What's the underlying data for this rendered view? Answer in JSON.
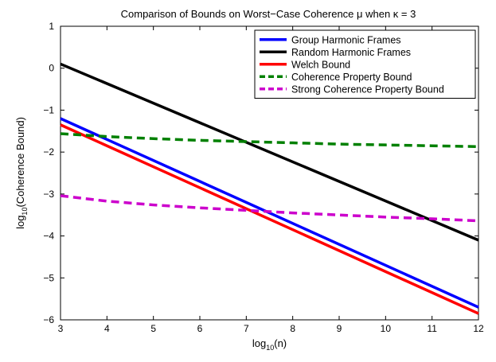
{
  "chart_data": {
    "type": "line",
    "title": "Comparison of Bounds on Worst−Case Coherence μ when κ = 3",
    "xlabel": {
      "prefix": "log",
      "sub": "10",
      "suffix": "(n)"
    },
    "ylabel": {
      "prefix": "log",
      "sub": "10",
      "suffix": "(Coherence Bound)"
    },
    "xlim": [
      3,
      12
    ],
    "ylim": [
      -6,
      1
    ],
    "xticks": [
      3,
      4,
      5,
      6,
      7,
      8,
      9,
      10,
      11,
      12
    ],
    "xtick_labels": [
      "3",
      "4",
      "5",
      "6",
      "7",
      "8",
      "9",
      "10",
      "11",
      "12"
    ],
    "yticks": [
      -6,
      -5,
      -4,
      -3,
      -2,
      -1,
      0,
      1
    ],
    "ytick_labels": [
      "−6",
      "−5",
      "−4",
      "−3",
      "−2",
      "−1",
      "0",
      "1"
    ],
    "grid": false,
    "legend_position": "top-right",
    "series": [
      {
        "name": "Group Harmonic Frames",
        "color": "#0000ff",
        "style": "solid",
        "x": [
          3,
          12
        ],
        "y": [
          -1.2,
          -5.7
        ]
      },
      {
        "name": "Random Harmonic Frames",
        "color": "#000000",
        "style": "solid",
        "x": [
          3,
          12
        ],
        "y": [
          0.1,
          -4.1
        ]
      },
      {
        "name": "Welch Bound",
        "color": "#ff0000",
        "style": "solid",
        "x": [
          3,
          12
        ],
        "y": [
          -1.35,
          -5.85
        ]
      },
      {
        "name": "Coherence Property Bound",
        "color": "#008000",
        "style": "dashed",
        "x": [
          3,
          4,
          5,
          6,
          7,
          8,
          9,
          10,
          11,
          12
        ],
        "y": [
          -1.56,
          -1.63,
          -1.68,
          -1.72,
          -1.75,
          -1.78,
          -1.81,
          -1.83,
          -1.85,
          -1.87
        ]
      },
      {
        "name": "Strong Coherence Property Bound",
        "color": "#cc00cc",
        "style": "dashed",
        "x": [
          3,
          4,
          5,
          6,
          7,
          8,
          9,
          10,
          11,
          12
        ],
        "y": [
          -3.04,
          -3.17,
          -3.26,
          -3.33,
          -3.39,
          -3.45,
          -3.5,
          -3.55,
          -3.59,
          -3.64
        ]
      }
    ]
  }
}
